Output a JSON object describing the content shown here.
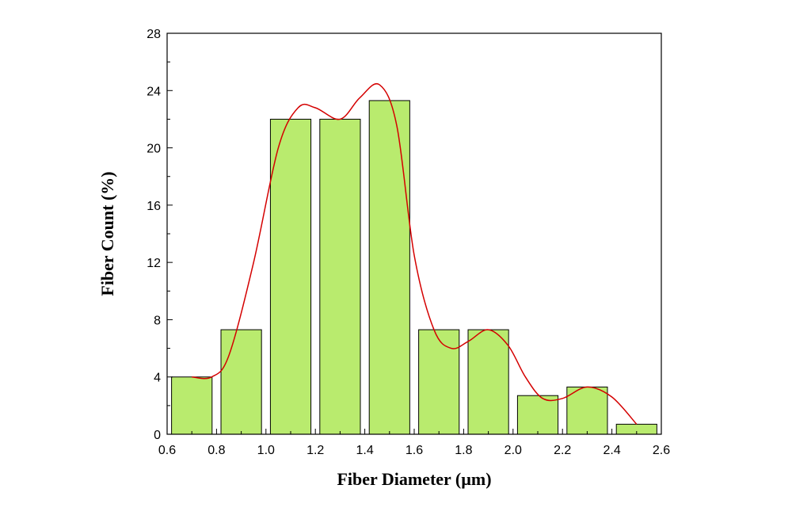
{
  "chart_data": {
    "type": "bar",
    "xlabel": "Fiber Diameter (µm)",
    "ylabel": "Fiber Count (%)",
    "xlim": [
      0.6,
      2.6
    ],
    "ylim": [
      0,
      28
    ],
    "xticks": [
      "0.6",
      "0.8",
      "1.0",
      "1.2",
      "1.4",
      "1.6",
      "1.8",
      "2.0",
      "2.2",
      "2.4",
      "2.6"
    ],
    "yticks": [
      "0",
      "4",
      "8",
      "12",
      "16",
      "20",
      "24",
      "28"
    ],
    "bins": [
      {
        "x0": 0.6,
        "x1": 0.8,
        "value": 4.0
      },
      {
        "x0": 0.8,
        "x1": 1.0,
        "value": 7.3
      },
      {
        "x0": 1.0,
        "x1": 1.2,
        "value": 22.0
      },
      {
        "x0": 1.2,
        "x1": 1.4,
        "value": 22.0
      },
      {
        "x0": 1.4,
        "x1": 1.6,
        "value": 23.3
      },
      {
        "x0": 1.6,
        "x1": 1.8,
        "value": 7.3
      },
      {
        "x0": 1.8,
        "x1": 2.0,
        "value": 7.3
      },
      {
        "x0": 2.0,
        "x1": 2.2,
        "value": 2.7
      },
      {
        "x0": 2.2,
        "x1": 2.4,
        "value": 3.3
      },
      {
        "x0": 2.4,
        "x1": 2.6,
        "value": 0.7
      }
    ],
    "fit_curve": {
      "x": [
        0.7,
        0.78,
        0.85,
        0.95,
        1.05,
        1.13,
        1.2,
        1.3,
        1.38,
        1.46,
        1.53,
        1.6,
        1.68,
        1.75,
        1.82,
        1.9,
        1.98,
        2.05,
        2.12,
        2.2,
        2.3,
        2.4,
        2.5
      ],
      "y": [
        4.0,
        4.0,
        5.5,
        12.0,
        20.0,
        22.8,
        22.8,
        22.0,
        23.5,
        24.4,
        21.5,
        12.5,
        7.3,
        6.0,
        6.5,
        7.3,
        6.2,
        4.0,
        2.5,
        2.5,
        3.3,
        2.6,
        0.7
      ]
    },
    "colors": {
      "bar_fill": "#b9eb6e",
      "bar_stroke": "#000000",
      "curve": "#d40000",
      "axis": "#000000"
    },
    "grid": false,
    "legend": "none"
  }
}
